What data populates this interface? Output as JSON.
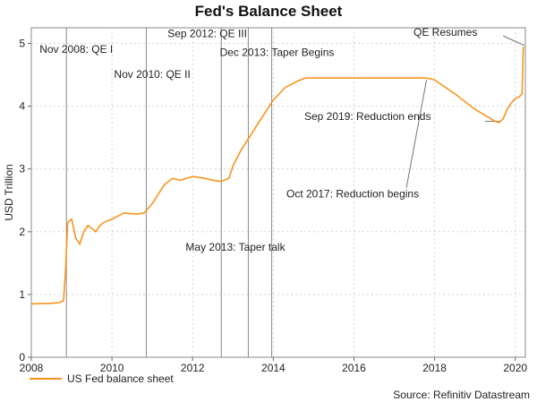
{
  "chart_data": {
    "type": "line",
    "title": "Fed's Balance Sheet",
    "xlabel": "",
    "ylabel": "USD Trillion",
    "xlim": [
      2008,
      2020.25
    ],
    "ylim": [
      0,
      5.25
    ],
    "x_ticks": [
      "2008",
      "2010",
      "2012",
      "2014",
      "2016",
      "2018",
      "2020"
    ],
    "y_ticks": [
      "0",
      "1",
      "2",
      "3",
      "4",
      "5"
    ],
    "grid": true,
    "legend_position": "bottom-left",
    "line_color": "#f7941d",
    "series": [
      {
        "name": "US Fed balance sheet",
        "x": [
          2008.0,
          2008.5,
          2008.7,
          2008.8,
          2008.85,
          2008.9,
          2009.0,
          2009.1,
          2009.2,
          2009.3,
          2009.4,
          2009.5,
          2009.6,
          2009.7,
          2009.8,
          2010.0,
          2010.3,
          2010.6,
          2010.8,
          2011.0,
          2011.3,
          2011.5,
          2011.7,
          2012.0,
          2012.3,
          2012.5,
          2012.7,
          2012.9,
          2013.0,
          2013.2,
          2013.4,
          2013.6,
          2013.8,
          2014.0,
          2014.3,
          2014.6,
          2014.8,
          2015.0,
          2015.5,
          2016.0,
          2016.5,
          2017.0,
          2017.5,
          2017.8,
          2018.0,
          2018.5,
          2019.0,
          2019.5,
          2019.6,
          2019.7,
          2019.8,
          2019.9,
          2020.0,
          2020.1,
          2020.17,
          2020.2
        ],
        "y": [
          0.85,
          0.86,
          0.87,
          0.9,
          1.4,
          2.15,
          2.2,
          1.9,
          1.8,
          2.0,
          2.1,
          2.05,
          2.0,
          2.1,
          2.15,
          2.2,
          2.3,
          2.28,
          2.3,
          2.45,
          2.75,
          2.85,
          2.82,
          2.88,
          2.85,
          2.82,
          2.8,
          2.85,
          3.05,
          3.3,
          3.5,
          3.7,
          3.9,
          4.1,
          4.3,
          4.4,
          4.45,
          4.45,
          4.45,
          4.45,
          4.45,
          4.45,
          4.45,
          4.45,
          4.42,
          4.2,
          3.95,
          3.76,
          3.74,
          3.8,
          3.95,
          4.05,
          4.12,
          4.15,
          4.2,
          4.95
        ]
      }
    ],
    "vertical_lines": [
      2008.87,
      2010.85,
      2012.71,
      2013.38,
      2013.96
    ],
    "annotations": [
      {
        "text": "Nov 2008: QE I",
        "x": 2008.87,
        "y": 4.85
      },
      {
        "text": "Nov 2010: QE II",
        "x": 2010.85,
        "y": 4.45
      },
      {
        "text": "Sep 2012: QE III",
        "x": 2012.71,
        "y": 5.1
      },
      {
        "text": "Dec 2013: Taper Begins",
        "x": 2013.96,
        "y": 4.8
      },
      {
        "text": "May 2013: Taper talk",
        "x": 2013.38,
        "y": 1.7
      },
      {
        "text": "Oct 2017: Reduction begins",
        "x": 2017.8,
        "y": 2.5
      },
      {
        "text": "Sep 2019: Reduction ends",
        "x": 2019.7,
        "y": 3.75
      },
      {
        "text": "QE Resumes",
        "x": 2020.2,
        "y": 4.95
      }
    ]
  },
  "legend": {
    "label": "US Fed balance sheet"
  },
  "source": "Source: Refinitiv Datastream"
}
